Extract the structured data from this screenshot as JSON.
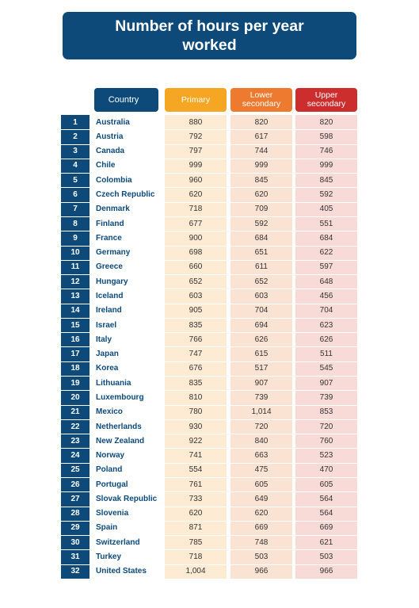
{
  "title": "Number of hours per year worked",
  "chart_data": {
    "type": "table",
    "title": "Number of hours per year worked",
    "columns": [
      "Country",
      "Primary",
      "Lower secondary",
      "Upper secondary"
    ],
    "rows": [
      {
        "rank": "1",
        "country": "Australia",
        "primary": "880",
        "lower": "820",
        "upper": "820"
      },
      {
        "rank": "2",
        "country": "Austria",
        "primary": "792",
        "lower": "617",
        "upper": "598"
      },
      {
        "rank": "3",
        "country": "Canada",
        "primary": "797",
        "lower": "744",
        "upper": "746"
      },
      {
        "rank": "4",
        "country": "Chile",
        "primary": "999",
        "lower": "999",
        "upper": "999"
      },
      {
        "rank": "5",
        "country": "Colombia",
        "primary": "960",
        "lower": "845",
        "upper": "845"
      },
      {
        "rank": "6",
        "country": "Czech Republic",
        "primary": "620",
        "lower": "620",
        "upper": "592"
      },
      {
        "rank": "7",
        "country": "Denmark",
        "primary": "718",
        "lower": "709",
        "upper": "405"
      },
      {
        "rank": "8",
        "country": "Finland",
        "primary": "677",
        "lower": "592",
        "upper": "551"
      },
      {
        "rank": "9",
        "country": "France",
        "primary": "900",
        "lower": "684",
        "upper": "684"
      },
      {
        "rank": "10",
        "country": "Germany",
        "primary": "698",
        "lower": "651",
        "upper": "622"
      },
      {
        "rank": "11",
        "country": "Greece",
        "primary": "660",
        "lower": "611",
        "upper": "597"
      },
      {
        "rank": "12",
        "country": "Hungary",
        "primary": "652",
        "lower": "652",
        "upper": "648"
      },
      {
        "rank": "13",
        "country": "Iceland",
        "primary": "603",
        "lower": "603",
        "upper": "456"
      },
      {
        "rank": "14",
        "country": "Ireland",
        "primary": "905",
        "lower": "704",
        "upper": "704"
      },
      {
        "rank": "15",
        "country": "Israel",
        "primary": "835",
        "lower": "694",
        "upper": "623"
      },
      {
        "rank": "16",
        "country": "Italy",
        "primary": "766",
        "lower": "626",
        "upper": "626"
      },
      {
        "rank": "17",
        "country": "Japan",
        "primary": "747",
        "lower": "615",
        "upper": "511"
      },
      {
        "rank": "18",
        "country": "Korea",
        "primary": "676",
        "lower": "517",
        "upper": "545"
      },
      {
        "rank": "19",
        "country": "Lithuania",
        "primary": "835",
        "lower": "907",
        "upper": "907"
      },
      {
        "rank": "20",
        "country": "Luxembourg",
        "primary": "810",
        "lower": "739",
        "upper": "739"
      },
      {
        "rank": "21",
        "country": "Mexico",
        "primary": "780",
        "lower": "1,014",
        "upper": "853"
      },
      {
        "rank": "22",
        "country": "Netherlands",
        "primary": "930",
        "lower": "720",
        "upper": "720"
      },
      {
        "rank": "23",
        "country": "New Zealand",
        "primary": "922",
        "lower": "840",
        "upper": "760"
      },
      {
        "rank": "24",
        "country": "Norway",
        "primary": "741",
        "lower": "663",
        "upper": "523"
      },
      {
        "rank": "25",
        "country": "Poland",
        "primary": "554",
        "lower": "475",
        "upper": "470"
      },
      {
        "rank": "26",
        "country": "Portugal",
        "primary": "761",
        "lower": "605",
        "upper": "605"
      },
      {
        "rank": "27",
        "country": "Slovak Republic",
        "primary": "733",
        "lower": "649",
        "upper": "564"
      },
      {
        "rank": "28",
        "country": "Slovenia",
        "primary": "620",
        "lower": "620",
        "upper": "564"
      },
      {
        "rank": "29",
        "country": "Spain",
        "primary": "871",
        "lower": "669",
        "upper": "669"
      },
      {
        "rank": "30",
        "country": "Switzerland",
        "primary": "785",
        "lower": "748",
        "upper": "621"
      },
      {
        "rank": "31",
        "country": "Turkey",
        "primary": "718",
        "lower": "503",
        "upper": "503"
      },
      {
        "rank": "32",
        "country": "United States",
        "primary": "1,004",
        "lower": "966",
        "upper": "966"
      }
    ]
  },
  "colors": {
    "navy": "#0d4a7a",
    "primary_header": "#f5a623",
    "lower_header": "#ee7a30",
    "upper_header": "#cc2e2e",
    "primary_cell": "#fdebd4",
    "lower_cell": "#fbe3d4",
    "upper_cell": "#f8dbd7"
  }
}
